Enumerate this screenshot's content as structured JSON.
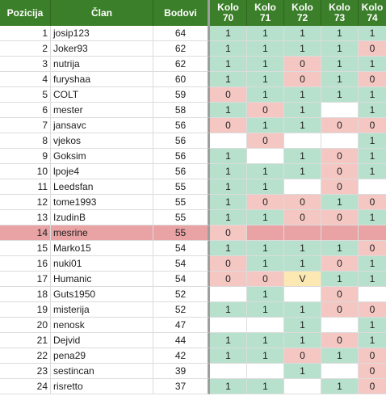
{
  "header": {
    "pozicija": "Pozicija",
    "clan": "Član",
    "bodovi": "Bodovi",
    "kola": [
      "Kolo\n70",
      "Kolo\n71",
      "Kolo\n72",
      "Kolo\n73",
      "Kolo\n74"
    ]
  },
  "colors": {
    "header_bg": "#3c7f2a",
    "green_cell": "#b7e1cd",
    "red_cell": "#f4c7c3",
    "yellow_cell": "#fce8b2",
    "highlight_row": "#eaa3a5"
  },
  "highlighted_player": "mesrine",
  "rows": [
    {
      "pos": "1",
      "clan": "josip123",
      "bodovi": "64",
      "kola": [
        "1",
        "1",
        "1",
        "1",
        "1"
      ]
    },
    {
      "pos": "2",
      "clan": "Joker93",
      "bodovi": "62",
      "kola": [
        "1",
        "1",
        "1",
        "1",
        "0"
      ]
    },
    {
      "pos": "3",
      "clan": "nutrija",
      "bodovi": "62",
      "kola": [
        "1",
        "1",
        "0",
        "1",
        "1"
      ]
    },
    {
      "pos": "4",
      "clan": "furyshaa",
      "bodovi": "60",
      "kola": [
        "1",
        "1",
        "0",
        "1",
        "0"
      ]
    },
    {
      "pos": "5",
      "clan": "COLT",
      "bodovi": "59",
      "kola": [
        "0",
        "1",
        "1",
        "1",
        "1"
      ]
    },
    {
      "pos": "6",
      "clan": "mester",
      "bodovi": "58",
      "kola": [
        "1",
        "0",
        "1",
        "",
        "1"
      ]
    },
    {
      "pos": "7",
      "clan": "jansavc",
      "bodovi": "56",
      "kola": [
        "0",
        "1",
        "1",
        "0",
        "0"
      ]
    },
    {
      "pos": "8",
      "clan": "vjekos",
      "bodovi": "56",
      "kola": [
        "",
        "0",
        "",
        "",
        "1"
      ]
    },
    {
      "pos": "9",
      "clan": "Goksim",
      "bodovi": "56",
      "kola": [
        "1",
        "",
        "1",
        "0",
        "1"
      ]
    },
    {
      "pos": "10",
      "clan": "lpoje4",
      "bodovi": "56",
      "kola": [
        "1",
        "1",
        "1",
        "0",
        "1"
      ]
    },
    {
      "pos": "11",
      "clan": "Leedsfan",
      "bodovi": "55",
      "kola": [
        "1",
        "1",
        "",
        "0",
        ""
      ]
    },
    {
      "pos": "12",
      "clan": "tome1993",
      "bodovi": "55",
      "kola": [
        "1",
        "0",
        "0",
        "1",
        "0"
      ]
    },
    {
      "pos": "13",
      "clan": "IzudinB",
      "bodovi": "55",
      "kola": [
        "1",
        "1",
        "0",
        "0",
        "1"
      ]
    },
    {
      "pos": "14",
      "clan": "mesrine",
      "bodovi": "55",
      "kola": [
        "0",
        "",
        "",
        "",
        ""
      ]
    },
    {
      "pos": "15",
      "clan": "Marko15",
      "bodovi": "54",
      "kola": [
        "1",
        "1",
        "1",
        "1",
        "0"
      ]
    },
    {
      "pos": "16",
      "clan": "nuki01",
      "bodovi": "54",
      "kola": [
        "0",
        "1",
        "1",
        "0",
        "1"
      ]
    },
    {
      "pos": "17",
      "clan": "Humanic",
      "bodovi": "54",
      "kola": [
        "0",
        "0",
        "V",
        "1",
        "1"
      ]
    },
    {
      "pos": "18",
      "clan": "Guts1950",
      "bodovi": "52",
      "kola": [
        "",
        "1",
        "",
        "0",
        ""
      ]
    },
    {
      "pos": "19",
      "clan": "misterija",
      "bodovi": "52",
      "kola": [
        "1",
        "1",
        "1",
        "0",
        "0"
      ]
    },
    {
      "pos": "20",
      "clan": "nenosk",
      "bodovi": "47",
      "kola": [
        "",
        "",
        "1",
        "",
        "1"
      ]
    },
    {
      "pos": "21",
      "clan": "Dejvid",
      "bodovi": "44",
      "kola": [
        "1",
        "1",
        "1",
        "0",
        "1"
      ]
    },
    {
      "pos": "22",
      "clan": "pena29",
      "bodovi": "42",
      "kola": [
        "1",
        "1",
        "0",
        "1",
        "0"
      ]
    },
    {
      "pos": "23",
      "clan": "sestincan",
      "bodovi": "39",
      "kola": [
        "",
        "",
        "1",
        "",
        "0"
      ]
    },
    {
      "pos": "24",
      "clan": "risretto",
      "bodovi": "37",
      "kola": [
        "1",
        "1",
        "",
        "1",
        "0"
      ]
    }
  ]
}
